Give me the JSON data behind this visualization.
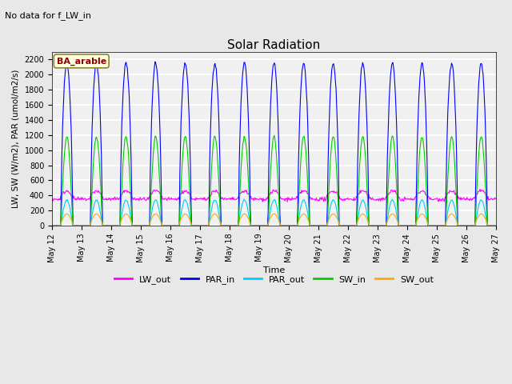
{
  "title": "Solar Radiation",
  "subtitle": "No data for f_LW_in",
  "xlabel": "Time",
  "ylabel": "LW, SW (W/m2), PAR (umol/m2/s)",
  "legend_label": "BA_arable",
  "ylim": [
    0,
    2300
  ],
  "yticks": [
    0,
    200,
    400,
    600,
    800,
    1000,
    1200,
    1400,
    1600,
    1800,
    2000,
    2200
  ],
  "n_days": 15,
  "start_day": 12,
  "series": {
    "LW_out": {
      "color": "#ff00ff",
      "peak": 460,
      "base": 350,
      "label": "LW_out"
    },
    "PAR_in": {
      "color": "#0000ff",
      "peak": 2150,
      "base": 0,
      "label": "PAR_in"
    },
    "PAR_out": {
      "color": "#00ccff",
      "peak": 340,
      "base": 0,
      "label": "PAR_out"
    },
    "SW_in": {
      "color": "#00cc00",
      "peak": 1180,
      "base": 0,
      "label": "SW_in"
    },
    "SW_out": {
      "color": "#ffaa00",
      "peak": 155,
      "base": 0,
      "label": "SW_out"
    }
  },
  "bg_color": "#e8e8e8",
  "plot_bg": "#f0f0f0",
  "grid_color": "white"
}
